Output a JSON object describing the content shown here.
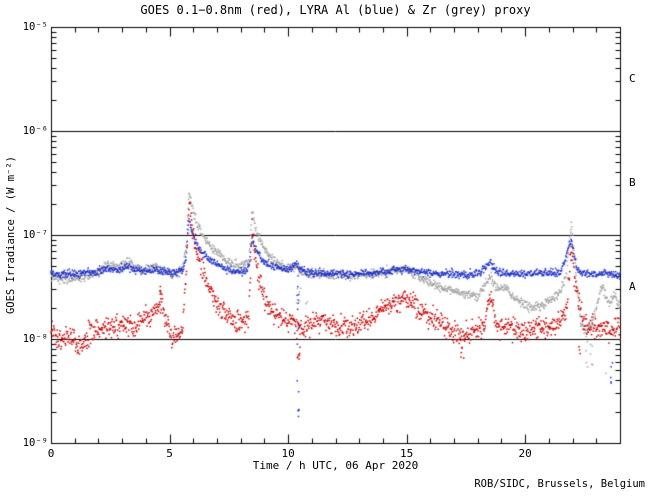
{
  "header": {
    "title": "GOES 0.1−0.8nm (red), LYRA Al (blue) & Zr (grey) proxy"
  },
  "footer": {
    "credit": "ROB/SIDC, Brussels, Belgium"
  },
  "chart_data": {
    "type": "scatter",
    "title": "GOES 0.1−0.8nm (red), LYRA Al (blue) & Zr (grey) proxy",
    "xlabel": "Time / h UTC, 06 Apr 2020",
    "ylabel": "GOES Irradiance / (W m⁻²)",
    "x_range": [
      0,
      24
    ],
    "x_minor_tick_step": 1,
    "x_major_tick_step": 5,
    "x_tick_labels": [
      {
        "value": 0,
        "label": "0"
      },
      {
        "value": 5,
        "label": "5"
      },
      {
        "value": 10,
        "label": "10"
      },
      {
        "value": 15,
        "label": "15"
      },
      {
        "value": 20,
        "label": "20"
      }
    ],
    "y_scale": "log",
    "y_range": [
      1e-09,
      1e-05
    ],
    "y_tick_labels": [
      {
        "value": 1e-05,
        "label": "10⁻⁵"
      },
      {
        "value": 1e-06,
        "label": "10⁻⁶"
      },
      {
        "value": 1e-07,
        "label": "10⁻⁷"
      },
      {
        "value": 1e-08,
        "label": "10⁻⁸"
      },
      {
        "value": 1e-09,
        "label": "10⁻⁹"
      }
    ],
    "grid": false,
    "hlines": [
      1e-06,
      1e-07,
      1e-08
    ],
    "flare_classes": [
      {
        "label": "C",
        "between": [
          1e-06,
          1e-05
        ]
      },
      {
        "label": "B",
        "between": [
          1e-07,
          1e-06
        ]
      },
      {
        "label": "A",
        "between": [
          1e-08,
          1e-07
        ]
      }
    ],
    "legend_position": "in-title",
    "series": [
      {
        "name": "GOES 0.1−0.8nm",
        "key": "red",
        "color": "#cc0000",
        "noise_dex": 0.05,
        "anchors": [
          [
            0,
            1.15e-08
          ],
          [
            0.4,
            9.5e-09
          ],
          [
            0.8,
            1.05e-08
          ],
          [
            1.2,
            9e-09
          ],
          [
            1.6,
            1.1e-08
          ],
          [
            2.0,
            1.25e-08
          ],
          [
            2.4,
            1.35e-08
          ],
          [
            2.8,
            1.3e-08
          ],
          [
            3.2,
            1.45e-08
          ],
          [
            3.6,
            1.3e-08
          ],
          [
            4.0,
            1.6e-08
          ],
          [
            4.4,
            1.9e-08
          ],
          [
            4.65,
            2.4e-08
          ],
          [
            4.85,
            1.5e-08
          ],
          [
            5.1,
            1.05e-08
          ],
          [
            5.35,
            1e-08
          ],
          [
            5.55,
            1.3e-08
          ],
          [
            5.7,
            4e-08
          ],
          [
            5.82,
            2e-07
          ],
          [
            5.95,
            1.2e-07
          ],
          [
            6.15,
            7e-08
          ],
          [
            6.4,
            4.5e-08
          ],
          [
            6.7,
            3e-08
          ],
          [
            7.0,
            2.2e-08
          ],
          [
            7.4,
            1.7e-08
          ],
          [
            7.8,
            1.45e-08
          ],
          [
            8.1,
            1.4e-08
          ],
          [
            8.35,
            1.7e-08
          ],
          [
            8.48,
            1.15e-07
          ],
          [
            8.62,
            6e-08
          ],
          [
            8.8,
            3.5e-08
          ],
          [
            9.0,
            2.5e-08
          ],
          [
            9.3,
            1.9e-08
          ],
          [
            9.7,
            1.6e-08
          ],
          [
            10.1,
            1.5e-08
          ],
          [
            10.5,
            1.3e-08
          ],
          [
            10.9,
            1.4e-08
          ],
          [
            11.3,
            1.5e-08
          ],
          [
            11.7,
            1.4e-08
          ],
          [
            12.1,
            1.35e-08
          ],
          [
            12.5,
            1.3e-08
          ],
          [
            12.9,
            1.4e-08
          ],
          [
            13.3,
            1.5e-08
          ],
          [
            13.7,
            1.7e-08
          ],
          [
            14.1,
            2e-08
          ],
          [
            14.5,
            2.2e-08
          ],
          [
            14.9,
            2.5e-08
          ],
          [
            15.2,
            2.3e-08
          ],
          [
            15.6,
            1.9e-08
          ],
          [
            16.0,
            1.6e-08
          ],
          [
            16.4,
            1.45e-08
          ],
          [
            16.8,
            1.3e-08
          ],
          [
            17.2,
            1.05e-08
          ],
          [
            17.5,
            1.1e-08
          ],
          [
            17.9,
            1.25e-08
          ],
          [
            18.3,
            1.4e-08
          ],
          [
            18.55,
            2.8e-08
          ],
          [
            18.75,
            1.5e-08
          ],
          [
            19.1,
            1.25e-08
          ],
          [
            19.5,
            1.3e-08
          ],
          [
            19.9,
            1.15e-08
          ],
          [
            20.3,
            1.2e-08
          ],
          [
            20.7,
            1.3e-08
          ],
          [
            21.1,
            1.35e-08
          ],
          [
            21.5,
            1.5e-08
          ],
          [
            21.75,
            2e-08
          ],
          [
            21.95,
            7.5e-08
          ],
          [
            22.15,
            3e-08
          ],
          [
            22.4,
            1.6e-08
          ],
          [
            22.8,
            1.3e-08
          ],
          [
            23.2,
            1.25e-08
          ],
          [
            23.6,
            1.2e-08
          ],
          [
            24,
            1.3e-08
          ]
        ]
      },
      {
        "name": "LYRA Al proxy",
        "key": "blue",
        "color": "#2233cc",
        "noise_dex": 0.018,
        "anchors": [
          [
            0,
            4.3e-08
          ],
          [
            0.5,
            4.2e-08
          ],
          [
            1.0,
            4.25e-08
          ],
          [
            1.5,
            4.3e-08
          ],
          [
            2.0,
            4.5e-08
          ],
          [
            2.4,
            4.8e-08
          ],
          [
            2.8,
            4.6e-08
          ],
          [
            3.2,
            5e-08
          ],
          [
            3.6,
            4.6e-08
          ],
          [
            4.0,
            4.5e-08
          ],
          [
            4.4,
            4.7e-08
          ],
          [
            4.8,
            4.4e-08
          ],
          [
            5.2,
            4.3e-08
          ],
          [
            5.55,
            4.5e-08
          ],
          [
            5.7,
            6e-08
          ],
          [
            5.82,
            1.45e-07
          ],
          [
            5.95,
            1.05e-07
          ],
          [
            6.15,
            8e-08
          ],
          [
            6.45,
            6.5e-08
          ],
          [
            6.8,
            5.5e-08
          ],
          [
            7.2,
            4.9e-08
          ],
          [
            7.6,
            4.5e-08
          ],
          [
            8.0,
            4.4e-08
          ],
          [
            8.35,
            4.8e-08
          ],
          [
            8.48,
            9.5e-08
          ],
          [
            8.65,
            7e-08
          ],
          [
            8.9,
            5.8e-08
          ],
          [
            9.2,
            5.2e-08
          ],
          [
            9.6,
            4.8e-08
          ],
          [
            10.0,
            4.6e-08
          ],
          [
            10.35,
            5.3e-08
          ],
          [
            10.6,
            4.5e-08
          ],
          [
            11.0,
            4.3e-08
          ],
          [
            11.5,
            4.25e-08
          ],
          [
            12.0,
            4.3e-08
          ],
          [
            12.5,
            4.2e-08
          ],
          [
            13.0,
            4.3e-08
          ],
          [
            13.5,
            4.3e-08
          ],
          [
            14.0,
            4.4e-08
          ],
          [
            14.5,
            4.6e-08
          ],
          [
            14.9,
            4.8e-08
          ],
          [
            15.3,
            4.5e-08
          ],
          [
            15.7,
            4.3e-08
          ],
          [
            16.1,
            4.3e-08
          ],
          [
            16.5,
            4.25e-08
          ],
          [
            17.0,
            4.2e-08
          ],
          [
            17.5,
            4.2e-08
          ],
          [
            18.0,
            4.25e-08
          ],
          [
            18.55,
            5.4e-08
          ],
          [
            18.8,
            4.4e-08
          ],
          [
            19.2,
            4.3e-08
          ],
          [
            19.6,
            4.25e-08
          ],
          [
            20.0,
            4.2e-08
          ],
          [
            20.5,
            4.25e-08
          ],
          [
            21.0,
            4.3e-08
          ],
          [
            21.5,
            4.4e-08
          ],
          [
            21.95,
            9e-08
          ],
          [
            22.2,
            4.6e-08
          ],
          [
            22.6,
            4.2e-08
          ],
          [
            23.0,
            4.2e-08
          ],
          [
            23.4,
            4.3e-08
          ],
          [
            23.7,
            4.1e-08
          ],
          [
            24,
            4e-08
          ]
        ]
      },
      {
        "name": "LYRA Zr proxy",
        "key": "grey",
        "color": "#a6a6a6",
        "noise_dex": 0.022,
        "anchors": [
          [
            0,
            4e-08
          ],
          [
            0.5,
            3.8e-08
          ],
          [
            1.0,
            3.9e-08
          ],
          [
            1.5,
            4e-08
          ],
          [
            2.0,
            4.3e-08
          ],
          [
            2.4,
            5.2e-08
          ],
          [
            2.8,
            4.8e-08
          ],
          [
            3.2,
            5.6e-08
          ],
          [
            3.6,
            4.8e-08
          ],
          [
            4.0,
            4.6e-08
          ],
          [
            4.4,
            5e-08
          ],
          [
            4.8,
            4.4e-08
          ],
          [
            5.2,
            4.2e-08
          ],
          [
            5.55,
            4.5e-08
          ],
          [
            5.7,
            8e-08
          ],
          [
            5.82,
            2.6e-07
          ],
          [
            5.95,
            1.9e-07
          ],
          [
            6.15,
            1.3e-07
          ],
          [
            6.45,
            9.5e-08
          ],
          [
            6.8,
            7.5e-08
          ],
          [
            7.2,
            6.2e-08
          ],
          [
            7.6,
            5.4e-08
          ],
          [
            8.0,
            5e-08
          ],
          [
            8.35,
            5.6e-08
          ],
          [
            8.48,
            1.7e-07
          ],
          [
            8.65,
            1.1e-07
          ],
          [
            8.9,
            8e-08
          ],
          [
            9.2,
            6.3e-08
          ],
          [
            9.6,
            5.3e-08
          ],
          [
            10.0,
            4.8e-08
          ],
          [
            10.35,
            5e-08
          ],
          [
            10.7,
            4.3e-08
          ],
          [
            11.1,
            4.2e-08
          ],
          [
            11.5,
            4.1e-08
          ],
          [
            12.0,
            4.2e-08
          ],
          [
            12.5,
            4e-08
          ],
          [
            13.0,
            4.1e-08
          ],
          [
            13.5,
            4.2e-08
          ],
          [
            14.0,
            4.4e-08
          ],
          [
            14.5,
            4.6e-08
          ],
          [
            14.9,
            4.7e-08
          ],
          [
            15.3,
            4.2e-08
          ],
          [
            15.7,
            3.8e-08
          ],
          [
            16.1,
            3.4e-08
          ],
          [
            16.5,
            3.1e-08
          ],
          [
            17.0,
            2.9e-08
          ],
          [
            17.5,
            2.7e-08
          ],
          [
            18.0,
            2.6e-08
          ],
          [
            18.55,
            4e-08
          ],
          [
            18.8,
            2.9e-08
          ],
          [
            19.2,
            3.2e-08
          ],
          [
            19.5,
            2.5e-08
          ],
          [
            19.9,
            2.2e-08
          ],
          [
            20.3,
            2e-08
          ],
          [
            20.7,
            2.1e-08
          ],
          [
            21.1,
            2.4e-08
          ],
          [
            21.5,
            2.9e-08
          ],
          [
            21.75,
            4.5e-08
          ],
          [
            21.95,
            1.3e-07
          ],
          [
            22.15,
            4e-08
          ],
          [
            22.35,
            1.4e-08
          ],
          [
            22.6,
            1.1e-08
          ],
          [
            22.9,
            1.6e-08
          ],
          [
            23.25,
            3.3e-08
          ],
          [
            23.5,
            2.2e-08
          ],
          [
            23.75,
            2.6e-08
          ],
          [
            24,
            2.1e-08
          ]
        ]
      }
    ],
    "outlier_streaks": [
      {
        "series": "blue",
        "t": 10.42,
        "spread": 0.08,
        "v_min": 1.5e-09,
        "v_max": 5e-08,
        "n": 16
      },
      {
        "series": "red",
        "t": 10.5,
        "spread": 0.25,
        "v_min": 6e-09,
        "v_max": 9.5e-09,
        "n": 7
      },
      {
        "series": "red",
        "t": 4.62,
        "spread": 0.05,
        "v_min": 2.2e-08,
        "v_max": 3.2e-08,
        "n": 6
      },
      {
        "series": "red",
        "t": 17.35,
        "spread": 0.12,
        "v_min": 6.5e-09,
        "v_max": 9e-09,
        "n": 4
      },
      {
        "series": "red",
        "t": 22.3,
        "spread": 0.15,
        "v_min": 7e-09,
        "v_max": 9e-09,
        "n": 3
      },
      {
        "series": "grey",
        "t": 10.6,
        "spread": 0.5,
        "v_min": 2e-08,
        "v_max": 3.2e-08,
        "n": 7
      },
      {
        "series": "grey",
        "t": 22.7,
        "spread": 0.35,
        "v_min": 5e-09,
        "v_max": 9.5e-09,
        "n": 9
      },
      {
        "series": "grey",
        "t": 23.4,
        "spread": 0.05,
        "v_min": 4.5e-09,
        "v_max": 5e-09,
        "n": 1
      },
      {
        "series": "blue",
        "t": 23.65,
        "spread": 0.1,
        "v_min": 2.8e-09,
        "v_max": 9e-09,
        "n": 5
      }
    ],
    "flare_events_utc_h": [
      5.8,
      8.5,
      21.9
    ]
  }
}
